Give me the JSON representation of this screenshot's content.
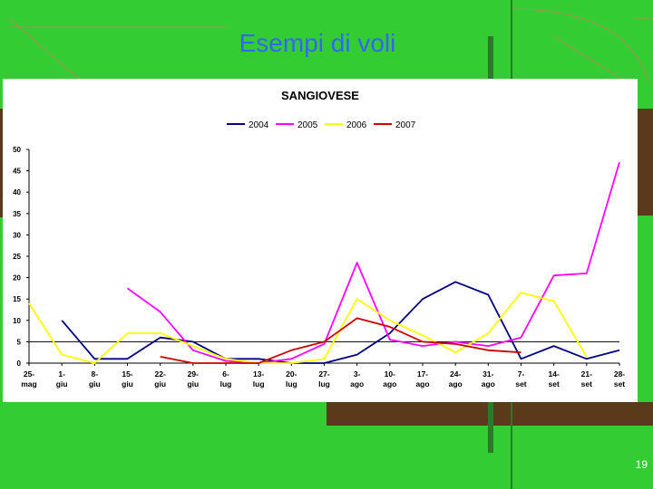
{
  "slide": {
    "title": "Esempi di voli",
    "number": "19"
  },
  "colors": {
    "background": "#33cc33",
    "title": "#3366ff",
    "panel": "#ffffff",
    "decor_brown": "#5a3a1a"
  },
  "chart_data": {
    "type": "line",
    "title": "SANGIOVESE",
    "xlabel": "",
    "ylabel": "",
    "ylim": [
      0,
      50
    ],
    "yticks": [
      0,
      5,
      10,
      15,
      20,
      25,
      30,
      35,
      40,
      45,
      50
    ],
    "reference_line": 5,
    "legend_position": "top",
    "grid": false,
    "categories": [
      [
        "25-",
        "mag"
      ],
      [
        "1-",
        "giu"
      ],
      [
        "8-",
        "giu"
      ],
      [
        "15-",
        "giu"
      ],
      [
        "22-",
        "giu"
      ],
      [
        "29-",
        "giu"
      ],
      [
        "6-",
        "lug"
      ],
      [
        "13-",
        "lug"
      ],
      [
        "20-",
        "lug"
      ],
      [
        "27-",
        "lug"
      ],
      [
        "3-",
        "ago"
      ],
      [
        "10-",
        "ago"
      ],
      [
        "17-",
        "ago"
      ],
      [
        "24-",
        "ago"
      ],
      [
        "31-",
        "ago"
      ],
      [
        "7-",
        "set"
      ],
      [
        "14-",
        "set"
      ],
      [
        "21-",
        "set"
      ],
      [
        "28-",
        "set"
      ]
    ],
    "series": [
      {
        "name": "2004",
        "color": "#000080",
        "values": [
          null,
          10,
          1,
          1,
          6,
          5,
          1,
          1,
          0,
          0,
          2,
          7,
          15,
          19,
          16,
          1,
          4,
          1,
          3
        ]
      },
      {
        "name": "2005",
        "color": "#ff00ff",
        "values": [
          null,
          null,
          null,
          17.5,
          12,
          3,
          0.5,
          0,
          1,
          4.5,
          23.5,
          5.5,
          4,
          5,
          4,
          6,
          20.5,
          21,
          47
        ]
      },
      {
        "name": "2006",
        "color": "#ffff00",
        "values": [
          14,
          2,
          0,
          7,
          7,
          4,
          1,
          0,
          0,
          1,
          15,
          10,
          6.5,
          2.5,
          7,
          16.5,
          14.5,
          1.5,
          null
        ]
      },
      {
        "name": "2007",
        "color": "#cc0000",
        "values": [
          null,
          null,
          null,
          null,
          1.5,
          0,
          0,
          0,
          3,
          5,
          10.5,
          8.5,
          5,
          4.5,
          3,
          2.5,
          null,
          null,
          null
        ]
      }
    ]
  }
}
